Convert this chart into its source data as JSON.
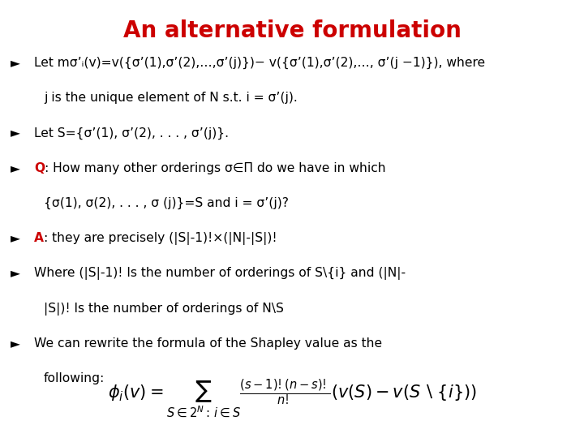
{
  "title": "An alternative formulation",
  "title_color": "#CC0000",
  "title_fontsize": 20,
  "background_color": "#ffffff",
  "bullet_char": "►",
  "body_fontsize": 11.2,
  "formula_fontsize": 15,
  "bullet_lines": [
    {
      "parts": [
        {
          "text": "Let mσ’ᵢ(v)=v({σ’(1),σ’(2),…,σ’(j)})− v({σ’(1),σ’(2),…, σ’(j −1)}), where",
          "color": "#000000",
          "bold": false
        }
      ],
      "indent": false
    },
    {
      "parts": [
        {
          "text": "j is the unique element of N s.t. i = σ’(j).",
          "color": "#000000",
          "bold": false
        }
      ],
      "indent": true
    },
    {
      "parts": [
        {
          "text": "Let S={σ’(1), σ’(2), . . . , σ’(j)}.",
          "color": "#000000",
          "bold": false
        }
      ],
      "indent": false
    },
    {
      "parts": [
        {
          "text": "Q",
          "color": "#CC0000",
          "bold": true
        },
        {
          "text": ": How many other orderings σ∈Π do we have in which",
          "color": "#000000",
          "bold": false
        }
      ],
      "indent": false
    },
    {
      "parts": [
        {
          "text": "{σ(1), σ(2), . . . , σ (j)}=S and i = σ’(j)?",
          "color": "#000000",
          "bold": false
        }
      ],
      "indent": true
    },
    {
      "parts": [
        {
          "text": "A",
          "color": "#CC0000",
          "bold": true
        },
        {
          "text": ": they are precisely (|S|-1)!×(|N|-|S|)!",
          "color": "#000000",
          "bold": false
        }
      ],
      "indent": false
    },
    {
      "parts": [
        {
          "text": "Where (|S|-1)! Is the number of orderings of S\\{i} and (|N|-",
          "color": "#000000",
          "bold": false
        }
      ],
      "indent": false
    },
    {
      "parts": [
        {
          "text": "|S|)! Is the number of orderings of N\\S",
          "color": "#000000",
          "bold": false
        }
      ],
      "indent": true
    },
    {
      "parts": [
        {
          "text": "We can rewrite the formula of the Shapley value as the",
          "color": "#000000",
          "bold": false
        }
      ],
      "indent": false
    },
    {
      "parts": [
        {
          "text": "following:",
          "color": "#000000",
          "bold": false
        }
      ],
      "indent": true
    }
  ],
  "formula": "$\\phi_i(v) = \\sum_{S\\in 2^N:\\, i\\in S} \\frac{(s-1)!(n-s)!}{n!}\\left(v(S) - v(S \\setminus \\{i\\})\\right)$"
}
